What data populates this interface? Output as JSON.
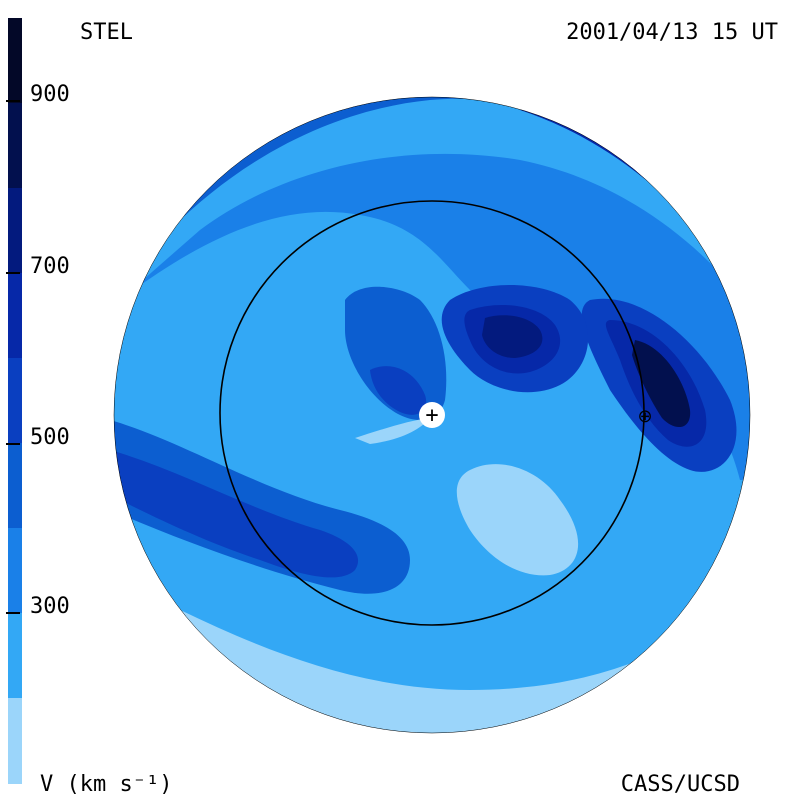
{
  "header": {
    "source": "STEL",
    "timestamp": "2001/04/13 15 UT"
  },
  "footer": {
    "unit_label": "V (km s⁻¹)",
    "credit": "CASS/UCSD"
  },
  "colorbar": {
    "ticks": [
      "900",
      "700",
      "500",
      "300"
    ],
    "levels": [
      {
        "max": 1000,
        "color": "#030828"
      },
      {
        "max": 900,
        "color": "#02104e"
      },
      {
        "max": 800,
        "color": "#031a7e"
      },
      {
        "max": 700,
        "color": "#0628a8"
      },
      {
        "max": 600,
        "color": "#0a3fc0"
      },
      {
        "max": 500,
        "color": "#0c5ed0"
      },
      {
        "max": 400,
        "color": "#1a80e8"
      },
      {
        "max": 300,
        "color": "#33a8f5"
      },
      {
        "max": 200,
        "color": "#9bd5fa"
      }
    ]
  },
  "plot": {
    "colors": {
      "base": "#33a8f5",
      "light": "#9bd5fa",
      "mid": "#1a80e8",
      "medium": "#0c5ed0",
      "deep": "#0a3fc0",
      "dark": "#0628a8",
      "darker": "#031a7e",
      "darkest": "#02104e"
    },
    "earth_marker": "⊕",
    "sun_marker": "+"
  }
}
